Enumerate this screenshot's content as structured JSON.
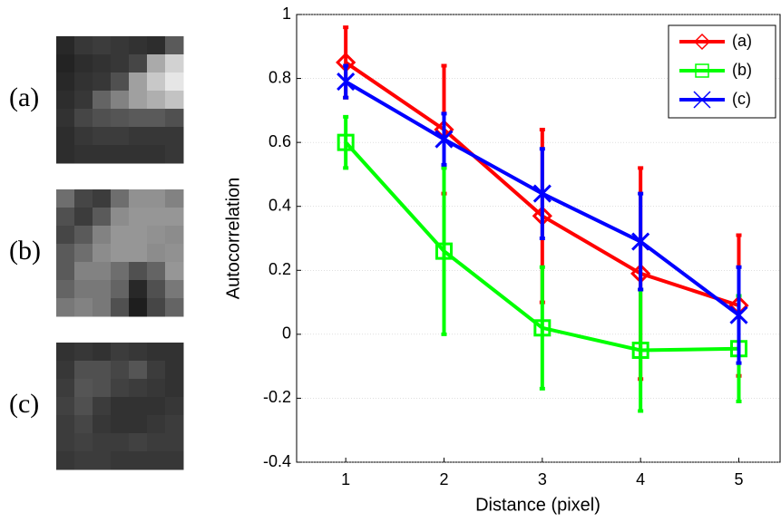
{
  "chart_data": {
    "type": "line",
    "x": [
      1,
      2,
      3,
      4,
      5
    ],
    "xlim": [
      0.5,
      5.42
    ],
    "xticks": [
      1,
      2,
      3,
      4,
      5
    ],
    "ylim": [
      -0.4,
      1
    ],
    "yticks": [
      -0.4,
      -0.2,
      0,
      0.2,
      0.4,
      0.6,
      0.8,
      1
    ],
    "x_label": "Distance (pixel)",
    "y_label": "Autocorrelation",
    "grid": true,
    "legend": "upper right",
    "series": [
      {
        "name": "(a)",
        "color": "#ff0000",
        "marker": "diamond",
        "values": [
          0.85,
          0.64,
          0.37,
          0.19,
          0.09
        ],
        "errors": [
          0.11,
          0.2,
          0.27,
          0.33,
          0.22
        ]
      },
      {
        "name": "(b)",
        "color": "#00ff00",
        "marker": "square",
        "values": [
          0.6,
          0.26,
          0.02,
          -0.05,
          -0.045
        ],
        "errors": [
          0.08,
          0.26,
          0.19,
          0.19,
          0.165
        ]
      },
      {
        "name": "(c)",
        "color": "#0000ff",
        "marker": "x",
        "values": [
          0.79,
          0.61,
          0.44,
          0.29,
          0.06
        ],
        "errors": [
          0.05,
          0.08,
          0.14,
          0.15,
          0.15
        ]
      }
    ]
  },
  "panels": [
    {
      "label": "(a)",
      "pixels": [
        [
          40,
          55,
          60,
          55,
          50,
          45,
          90
        ],
        [
          35,
          45,
          50,
          55,
          70,
          170,
          210
        ],
        [
          40,
          50,
          55,
          80,
          160,
          200,
          230
        ],
        [
          45,
          55,
          100,
          130,
          160,
          175,
          195
        ],
        [
          50,
          70,
          80,
          85,
          90,
          90,
          80
        ],
        [
          45,
          55,
          60,
          60,
          55,
          55,
          55
        ],
        [
          45,
          50,
          50,
          50,
          50,
          50,
          55
        ]
      ]
    },
    {
      "label": "(b)",
      "pixels": [
        [
          110,
          70,
          60,
          110,
          145,
          145,
          130
        ],
        [
          80,
          60,
          90,
          140,
          150,
          150,
          150
        ],
        [
          70,
          90,
          130,
          150,
          150,
          145,
          140
        ],
        [
          90,
          110,
          140,
          150,
          150,
          140,
          145
        ],
        [
          90,
          130,
          130,
          110,
          80,
          100,
          150
        ],
        [
          100,
          120,
          120,
          100,
          40,
          80,
          120
        ],
        [
          120,
          130,
          120,
          80,
          30,
          70,
          100
        ]
      ]
    },
    {
      "label": "(c)",
      "pixels": [
        [
          50,
          55,
          50,
          60,
          55,
          50,
          50
        ],
        [
          55,
          80,
          80,
          70,
          85,
          60,
          50
        ],
        [
          60,
          85,
          80,
          65,
          60,
          55,
          50
        ],
        [
          65,
          80,
          60,
          50,
          50,
          50,
          55
        ],
        [
          60,
          70,
          55,
          50,
          50,
          55,
          60
        ],
        [
          60,
          65,
          60,
          60,
          65,
          60,
          60
        ],
        [
          55,
          60,
          60,
          55,
          55,
          55,
          55
        ]
      ]
    }
  ]
}
